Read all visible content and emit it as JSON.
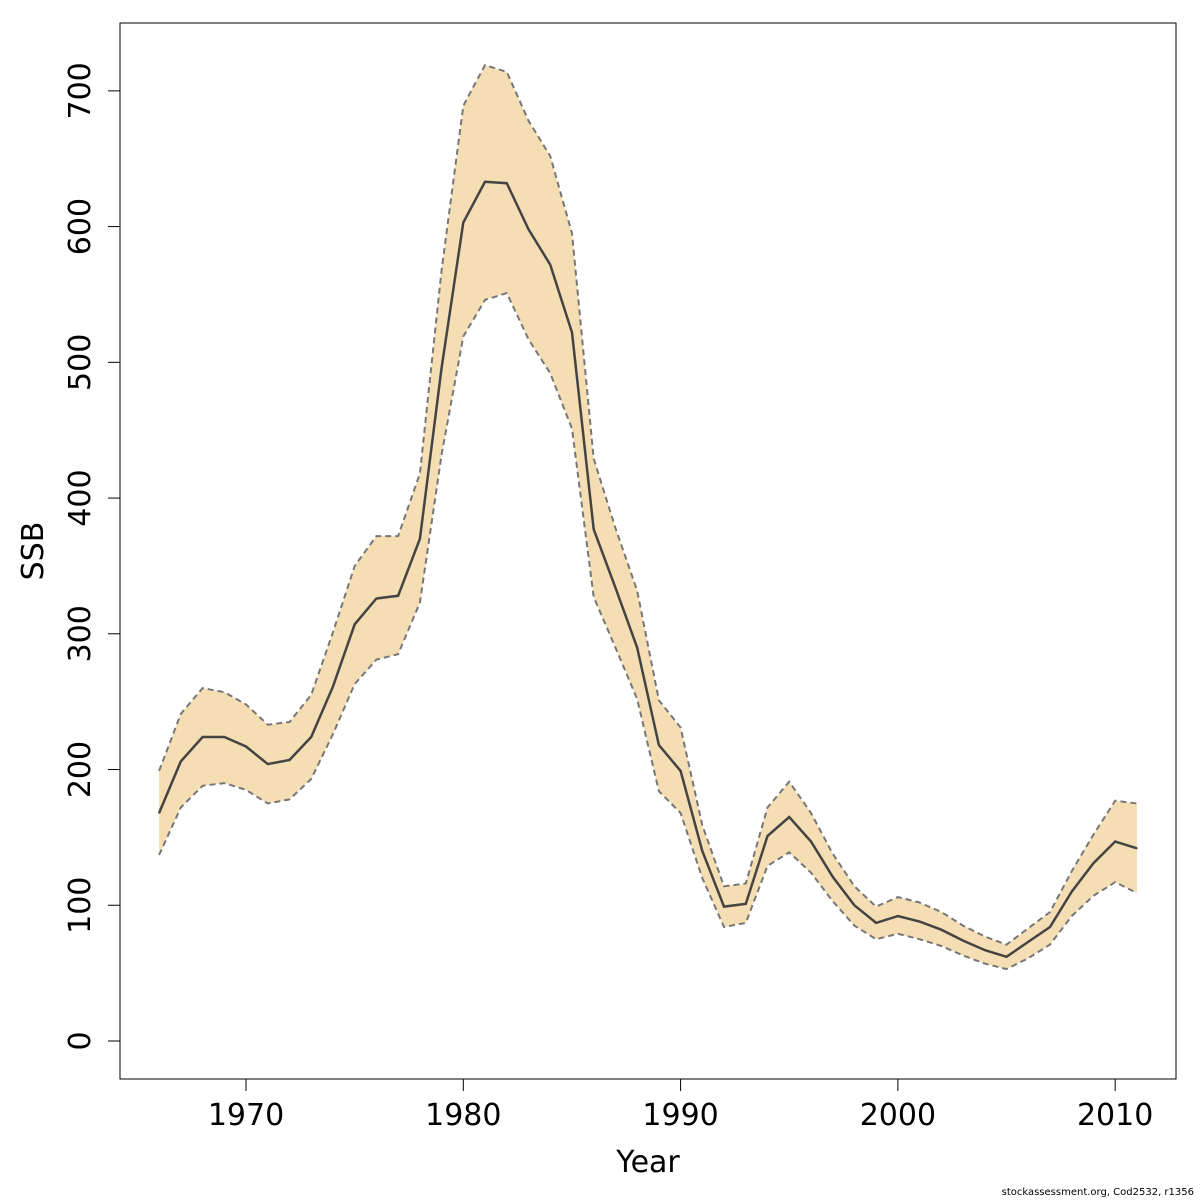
{
  "chart_data": {
    "type": "line",
    "xlabel": "Year",
    "ylabel": "SSB",
    "xlim": [
      1964.2,
      2012.8
    ],
    "ylim": [
      -28,
      750
    ],
    "x_ticks": [
      1970,
      1980,
      1990,
      2000,
      2010
    ],
    "y_ticks": [
      0,
      100,
      200,
      300,
      400,
      500,
      600,
      700
    ],
    "grid": false,
    "band_color": "#f5deb3",
    "line_color": "#444444",
    "x": [
      1966,
      1967,
      1968,
      1969,
      1970,
      1971,
      1972,
      1973,
      1974,
      1975,
      1976,
      1977,
      1978,
      1979,
      1980,
      1981,
      1982,
      1983,
      1984,
      1985,
      1986,
      1987,
      1988,
      1989,
      1990,
      1991,
      1992,
      1993,
      1994,
      1995,
      1996,
      1997,
      1998,
      1999,
      2000,
      2001,
      2002,
      2003,
      2004,
      2005,
      2006,
      2007,
      2008,
      2009,
      2010,
      2011
    ],
    "series": [
      {
        "role": "estimate",
        "values": [
          168,
          206,
          224,
          224,
          217,
          204,
          207,
          224,
          261,
          307,
          326,
          328,
          370,
          496,
          603,
          633,
          632,
          598,
          572,
          522,
          377,
          334,
          290,
          218,
          199,
          140,
          99,
          101,
          151,
          165,
          147,
          121,
          100,
          87,
          92,
          88,
          82,
          74,
          67,
          62,
          73,
          84,
          110,
          131,
          147,
          142
        ]
      },
      {
        "role": "upper",
        "values": [
          199,
          241,
          260,
          257,
          248,
          233,
          235,
          255,
          301,
          350,
          372,
          372,
          418,
          568,
          689,
          719,
          714,
          678,
          652,
          595,
          429,
          378,
          332,
          251,
          231,
          159,
          114,
          116,
          172,
          191,
          168,
          138,
          114,
          99,
          106,
          102,
          95,
          85,
          77,
          71,
          83,
          95,
          125,
          152,
          177,
          175
        ]
      },
      {
        "role": "lower",
        "values": [
          137,
          172,
          188,
          190,
          185,
          175,
          178,
          193,
          226,
          263,
          281,
          285,
          323,
          432,
          519,
          546,
          551,
          517,
          492,
          451,
          327,
          290,
          252,
          184,
          168,
          120,
          84,
          87,
          129,
          139,
          124,
          103,
          85,
          75,
          79,
          75,
          70,
          63,
          57,
          53,
          61,
          71,
          92,
          107,
          117,
          109
        ]
      }
    ]
  },
  "credit": "stockassessment.org, Cod2532, r1356"
}
